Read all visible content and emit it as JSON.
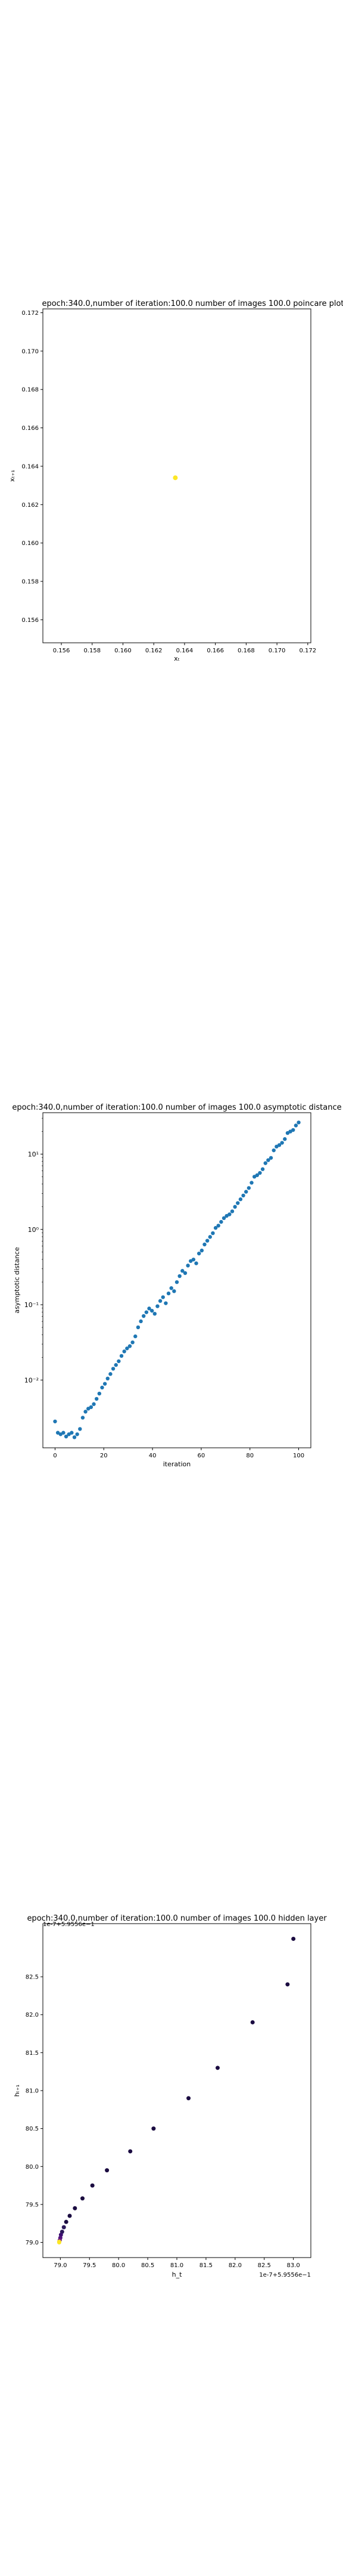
{
  "chart_data": [
    {
      "type": "scatter",
      "title": "epoch:340.0,number of iteration:100.0 number of images 100.0 poincare plot",
      "xlabel": "xₜ",
      "ylabel": "xₜ₊₁",
      "xlim": [
        0.1548,
        0.1722
      ],
      "ylim": [
        0.1548,
        0.1722
      ],
      "xticks": [
        0.156,
        0.158,
        0.16,
        0.162,
        0.164,
        0.166,
        0.168,
        0.17,
        0.172
      ],
      "yticks": [
        0.156,
        0.158,
        0.16,
        0.162,
        0.164,
        0.166,
        0.168,
        0.17,
        0.172
      ],
      "tick_decimals": 3,
      "points": [
        {
          "x": 0.1634,
          "y": 0.1634
        }
      ],
      "point_color": "#fde725",
      "grid": false
    },
    {
      "type": "scatter",
      "title": "epoch:340.0,number of iteration:100.0  number of images 100.0 asymptotic distance",
      "xlabel": "iteration",
      "ylabel": "asymptotic distance",
      "xlim": [
        -5,
        105
      ],
      "ylim_log10": [
        -2.9,
        1.55
      ],
      "yscale": "log",
      "xticks": [
        0,
        20,
        40,
        60,
        80,
        100
      ],
      "yticks": [
        "10⁻²",
        "10⁻¹",
        "10⁰",
        "10¹"
      ],
      "ytick_values_log10": [
        -2,
        -1,
        0,
        1
      ],
      "points_log10": [
        -2.55,
        -2.7,
        -2.72,
        -2.7,
        -2.75,
        -2.72,
        -2.7,
        -2.76,
        -2.72,
        -2.65,
        -2.5,
        -2.42,
        -2.38,
        -2.36,
        -2.32,
        -2.25,
        -2.18,
        -2.1,
        -2.05,
        -1.98,
        -1.92,
        -1.85,
        -1.8,
        -1.75,
        -1.68,
        -1.62,
        -1.58,
        -1.55,
        -1.5,
        -1.42,
        -1.3,
        -1.22,
        -1.15,
        -1.1,
        -1.05,
        -1.08,
        -1.12,
        -1.02,
        -0.95,
        -0.9,
        -0.98,
        -0.85,
        -0.78,
        -0.82,
        -0.7,
        -0.62,
        -0.55,
        -0.58,
        -0.48,
        -0.42,
        -0.4,
        -0.45,
        -0.32,
        -0.28,
        -0.2,
        -0.15,
        -0.1,
        -0.05,
        0.02,
        0.05,
        0.1,
        0.15,
        0.18,
        0.2,
        0.24,
        0.3,
        0.35,
        0.4,
        0.45,
        0.5,
        0.55,
        0.62,
        0.7,
        0.72,
        0.75,
        0.8,
        0.88,
        0.92,
        0.95,
        1.05,
        1.1,
        1.12,
        1.15,
        1.2,
        1.28,
        1.3,
        1.32,
        1.38,
        1.42
      ],
      "point_color": "#1f77b4"
    },
    {
      "type": "scatter",
      "title": "epoch:340.0,number of iteration:100.0  number of images 100.0 hidden layer",
      "xlabel": "h_t",
      "ylabel": "hₜ₊₁",
      "xlim": [
        78.7,
        83.3
      ],
      "ylim": [
        78.8,
        83.2
      ],
      "xticks": [
        79.0,
        79.5,
        80.0,
        80.5,
        81.0,
        81.5,
        82.0,
        82.5,
        83.0
      ],
      "yticks": [
        79.0,
        79.5,
        80.0,
        80.5,
        81.0,
        81.5,
        82.0,
        82.5
      ],
      "tick_decimals": 1,
      "x_offset_label": "1e-7+5.9556e−1",
      "y_offset_label": "1e-7+5.9556e−1",
      "points": [
        {
          "x": 83.0,
          "y": 83.0
        },
        {
          "x": 82.9,
          "y": 82.4
        },
        {
          "x": 82.3,
          "y": 81.9
        },
        {
          "x": 81.7,
          "y": 81.3
        },
        {
          "x": 81.2,
          "y": 80.9
        },
        {
          "x": 80.6,
          "y": 80.5
        },
        {
          "x": 80.2,
          "y": 80.2
        },
        {
          "x": 79.8,
          "y": 79.95
        },
        {
          "x": 79.55,
          "y": 79.75
        },
        {
          "x": 79.38,
          "y": 79.58
        },
        {
          "x": 79.25,
          "y": 79.45
        },
        {
          "x": 79.16,
          "y": 79.35
        },
        {
          "x": 79.1,
          "y": 79.27
        },
        {
          "x": 79.06,
          "y": 79.2
        },
        {
          "x": 79.03,
          "y": 79.14
        },
        {
          "x": 79.01,
          "y": 79.1
        },
        {
          "x": 79.0,
          "y": 79.06
        },
        {
          "x": 78.99,
          "y": 79.03
        },
        {
          "x": 78.98,
          "y": 79.01
        },
        {
          "x": 78.98,
          "y": 79.0
        }
      ],
      "point_colors": [
        "#1b0c41",
        "#1b0c41",
        "#1b0c41",
        "#1b0c41",
        "#1b0c41",
        "#1b0c41",
        "#1b0c41",
        "#1b0c41",
        "#1b0c41",
        "#1b0c41",
        "#1b0c41",
        "#1b0c41",
        "#1b0c41",
        "#2c1a5a",
        "#2c1a5a",
        "#3b0f70",
        "#51127c",
        "#6a1c81",
        "#f7d13d",
        "#fde725"
      ]
    }
  ]
}
